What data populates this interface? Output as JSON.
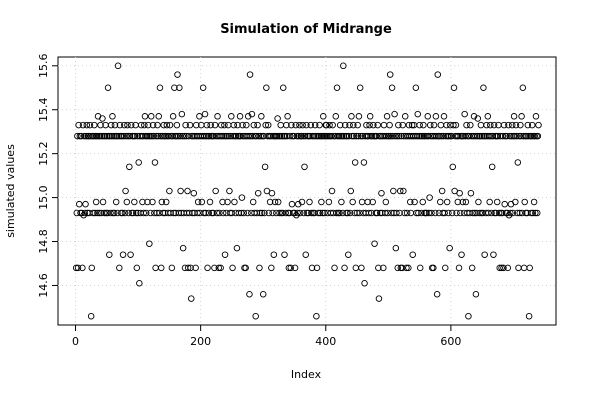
{
  "chart_data": {
    "type": "scatter",
    "title": "Simulation of Midrange",
    "xlabel": "Index",
    "ylabel": "simulated values",
    "xlim": [
      -28,
      768
    ],
    "xticks": [
      0,
      200,
      400,
      600
    ],
    "ylim": [
      14.42,
      15.64
    ],
    "yticks": [
      14.6,
      14.8,
      {
        "value": 15,
        "label": "15.0"
      },
      15.2,
      15.4,
      15.6
    ],
    "grid": true,
    "color": "#000000",
    "values": [
      14.68,
      14.93,
      15.28,
      14.68,
      15.33,
      14.97,
      15.28,
      14.93,
      15.28,
      14.93,
      14.68,
      15.33,
      14.92,
      15.28,
      14.93,
      14.97,
      15.28,
      15.33,
      14.93,
      15.28,
      15.28,
      14.93,
      15.33,
      15.28,
      14.46,
      14.68,
      15.28,
      14.93,
      15.28,
      15.33,
      14.93,
      15.28,
      14.98,
      15.28,
      14.93,
      15.37,
      15.28,
      14.93,
      15.28,
      15.33,
      14.93,
      15.28,
      15.36,
      14.98,
      15.28,
      14.93,
      15.28,
      15.33,
      14.93,
      15.28,
      14.93,
      15.5,
      15.28,
      14.74,
      15.28,
      14.93,
      15.33,
      15.28,
      15.37,
      14.93,
      15.28,
      14.93,
      15.33,
      15.28,
      14.98,
      15.28,
      14.93,
      15.6,
      15.28,
      14.68,
      15.33,
      15.28,
      14.93,
      15.28,
      14.93,
      14.74,
      15.28,
      15.33,
      14.93,
      15.03,
      15.28,
      14.98,
      15.33,
      15.28,
      14.93,
      15.14,
      15.28,
      14.74,
      15.33,
      14.93,
      15.28,
      14.93,
      15.28,
      14.98,
      15.28,
      15.33,
      14.93,
      14.68,
      15.28,
      14.93,
      15.16,
      14.61,
      15.28,
      14.93,
      15.33,
      15.28,
      14.98,
      15.28,
      14.93,
      15.33,
      15.37,
      15.28,
      14.93,
      15.28,
      14.98,
      15.33,
      15.28,
      14.79,
      15.28,
      14.93,
      15.37,
      15.28,
      14.98,
      15.33,
      15.28,
      14.93,
      15.16,
      14.68,
      15.28,
      14.93,
      15.33,
      15.28,
      15.37,
      14.93,
      15.5,
      15.28,
      14.68,
      14.98,
      15.28,
      14.93,
      15.33,
      15.28,
      14.93,
      15.28,
      14.98,
      15.33,
      15.28,
      14.93,
      15.28,
      15.03,
      15.33,
      14.93,
      15.28,
      14.68,
      15.28,
      15.37,
      14.93,
      15.5,
      15.28,
      14.93,
      15.28,
      15.33,
      15.56,
      15.28,
      14.93,
      15.5,
      15.28,
      15.03,
      14.93,
      15.38,
      15.28,
      14.77,
      14.93,
      15.28,
      14.68,
      15.33,
      15.28,
      14.93,
      15.03,
      14.68,
      15.28,
      14.93,
      15.33,
      14.68,
      14.54,
      15.28,
      14.93,
      15.28,
      15.02,
      14.93,
      15.28,
      14.68,
      15.33,
      15.28,
      14.93,
      14.98,
      15.28,
      15.37,
      14.93,
      15.28,
      15.33,
      14.98,
      15.28,
      15.5,
      14.93,
      15.28,
      15.38,
      14.93,
      15.28,
      15.33,
      14.68,
      15.28,
      14.93,
      15.28,
      14.98,
      15.33,
      15.28,
      14.93,
      15.28,
      14.93,
      15.28,
      14.68,
      15.33,
      15.03,
      15.28,
      14.93,
      15.37,
      15.28,
      14.68,
      14.93,
      15.28,
      14.68,
      15.33,
      15.28,
      14.98,
      14.93,
      15.28,
      15.33,
      14.74,
      15.28,
      14.93,
      15.28,
      14.98,
      15.33,
      15.28,
      15.03,
      14.93,
      15.28,
      15.37,
      14.93,
      14.68,
      15.28,
      15.33,
      14.98,
      15.28,
      14.93,
      15.28,
      14.77,
      15.33,
      15.28,
      14.93,
      15.28,
      15.37,
      15.28,
      14.93,
      15.0,
      15.33,
      15.28,
      14.93,
      14.68,
      15.28,
      14.68,
      15.33,
      15.28,
      14.93,
      15.37,
      15.28,
      14.56,
      15.56,
      15.28,
      14.93,
      15.38,
      15.28,
      14.98,
      15.33,
      14.93,
      15.28,
      14.46,
      15.28,
      14.93,
      15.33,
      15.02,
      15.28,
      14.68,
      14.93,
      15.28,
      15.37,
      14.93,
      15.28,
      14.56,
      15.28,
      14.93,
      15.14,
      15.33,
      15.5,
      15.03,
      15.28,
      15.33,
      14.93,
      15.28,
      14.98,
      15.28,
      14.68,
      15.02,
      14.93,
      15.28,
      14.74,
      15.28,
      14.98,
      15.28,
      14.93,
      15.28,
      15.36,
      14.98,
      15.28,
      14.93,
      15.28,
      15.33,
      14.93,
      15.28,
      14.93,
      15.5,
      15.28,
      14.74,
      15.28,
      14.93,
      15.33,
      15.28,
      15.37,
      14.93,
      14.68,
      14.93,
      15.28,
      14.68,
      15.33,
      14.97,
      15.28,
      14.93,
      15.28,
      14.93,
      14.68,
      15.33,
      14.92,
      15.28,
      14.93,
      14.97,
      15.28,
      15.33,
      14.93,
      15.28,
      15.28,
      14.98,
      15.33,
      15.28,
      14.93,
      15.14,
      15.28,
      14.74,
      15.33,
      14.93,
      15.28,
      14.93,
      15.28,
      14.98,
      15.28,
      15.33,
      14.93,
      14.68,
      15.28,
      14.93,
      15.28,
      14.93,
      15.33,
      15.28,
      14.46,
      14.68,
      15.28,
      14.93,
      15.28,
      15.33,
      14.93,
      15.28,
      14.98,
      15.28,
      14.93,
      15.37,
      15.28,
      14.93,
      15.28,
      15.33,
      15.33,
      15.28,
      14.93,
      15.28,
      14.98,
      15.33,
      15.28,
      14.93,
      15.28,
      15.03,
      15.33,
      14.93,
      15.28,
      14.68,
      15.28,
      15.37,
      14.93,
      15.5,
      15.28,
      14.93,
      15.28,
      14.93,
      15.33,
      15.28,
      14.98,
      15.28,
      14.93,
      15.6,
      15.28,
      14.68,
      15.33,
      15.28,
      14.93,
      15.28,
      14.93,
      14.74,
      15.28,
      15.33,
      14.93,
      15.03,
      15.37,
      15.28,
      14.98,
      15.33,
      15.28,
      14.93,
      15.16,
      14.68,
      15.28,
      14.93,
      15.33,
      15.28,
      15.37,
      14.93,
      15.5,
      15.28,
      14.68,
      14.98,
      15.28,
      14.93,
      15.16,
      14.61,
      15.28,
      14.93,
      15.33,
      15.28,
      14.98,
      15.28,
      14.93,
      15.33,
      15.37,
      15.28,
      14.93,
      15.28,
      14.98,
      15.33,
      15.28,
      14.79,
      15.28,
      14.93,
      15.28,
      14.93,
      15.33,
      14.68,
      14.54,
      15.28,
      14.93,
      15.28,
      15.02,
      14.93,
      15.28,
      14.68,
      15.33,
      15.28,
      14.93,
      14.98,
      15.28,
      15.37,
      14.93,
      15.28,
      15.28,
      15.33,
      15.56,
      15.28,
      14.93,
      15.5,
      15.28,
      15.03,
      14.93,
      15.38,
      15.28,
      14.77,
      14.93,
      15.28,
      14.68,
      15.33,
      15.28,
      14.93,
      15.03,
      14.68,
      15.28,
      14.68,
      15.33,
      15.03,
      15.28,
      14.93,
      15.37,
      15.28,
      14.68,
      14.93,
      15.28,
      14.68,
      15.33,
      15.28,
      14.98,
      14.93,
      15.28,
      15.33,
      14.74,
      15.28,
      15.33,
      14.98,
      15.28,
      15.5,
      14.93,
      15.28,
      15.38,
      14.93,
      15.28,
      15.33,
      14.68,
      15.28,
      14.93,
      15.28,
      14.98,
      15.33,
      15.28,
      14.93,
      15.28,
      14.93,
      14.93,
      15.28,
      15.37,
      15.28,
      14.93,
      15.0,
      15.33,
      15.28,
      14.93,
      14.68,
      15.28,
      14.68,
      15.33,
      15.28,
      14.93,
      15.37,
      15.28,
      14.56,
      15.56,
      15.28,
      14.93,
      15.28,
      14.98,
      15.33,
      15.28,
      15.03,
      14.93,
      15.28,
      15.37,
      14.93,
      14.68,
      15.28,
      15.33,
      14.98,
      15.28,
      14.93,
      15.28,
      14.77,
      15.33,
      15.28,
      15.28,
      14.93,
      15.14,
      15.33,
      15.5,
      15.03,
      15.28,
      15.33,
      14.93,
      15.28,
      14.98,
      15.28,
      14.68,
      15.02,
      14.93,
      15.28,
      14.74,
      15.28,
      14.98,
      15.28,
      14.93,
      15.38,
      15.28,
      14.98,
      15.33,
      14.93,
      15.28,
      14.46,
      15.28,
      14.93,
      15.33,
      15.02,
      15.28,
      14.68,
      14.93,
      15.28,
      15.37,
      14.93,
      15.28,
      14.56,
      14.93,
      15.28,
      15.36,
      14.98,
      15.28,
      14.93,
      15.28,
      15.33,
      14.93,
      15.28,
      14.93,
      15.5,
      15.28,
      14.74,
      15.28,
      14.93,
      15.33,
      15.28,
      15.37,
      14.93,
      15.28,
      14.98,
      15.33,
      15.28,
      14.93,
      15.14,
      15.28,
      14.74,
      15.33,
      14.93,
      15.28,
      14.93,
      15.28,
      14.98,
      15.28,
      15.33,
      14.93,
      14.68,
      15.28,
      14.93,
      14.68,
      14.93,
      15.28,
      14.68,
      15.33,
      14.97,
      15.28,
      14.93,
      15.28,
      14.93,
      14.68,
      15.33,
      14.92,
      15.28,
      14.93,
      14.97,
      15.28,
      15.33,
      14.93,
      15.28,
      15.37,
      15.28,
      14.98,
      15.33,
      15.28,
      14.93,
      15.16,
      14.68,
      15.28,
      14.93,
      15.33,
      15.28,
      15.37,
      14.93,
      15.5,
      15.28,
      14.68,
      14.98,
      15.28,
      14.93,
      15.28,
      14.93,
      15.33,
      15.28,
      14.46,
      14.68,
      15.28,
      14.93,
      15.28,
      15.33,
      14.93,
      15.28,
      14.98,
      15.28,
      14.93,
      15.37,
      15.28,
      14.93,
      15.28,
      15.33
    ]
  }
}
